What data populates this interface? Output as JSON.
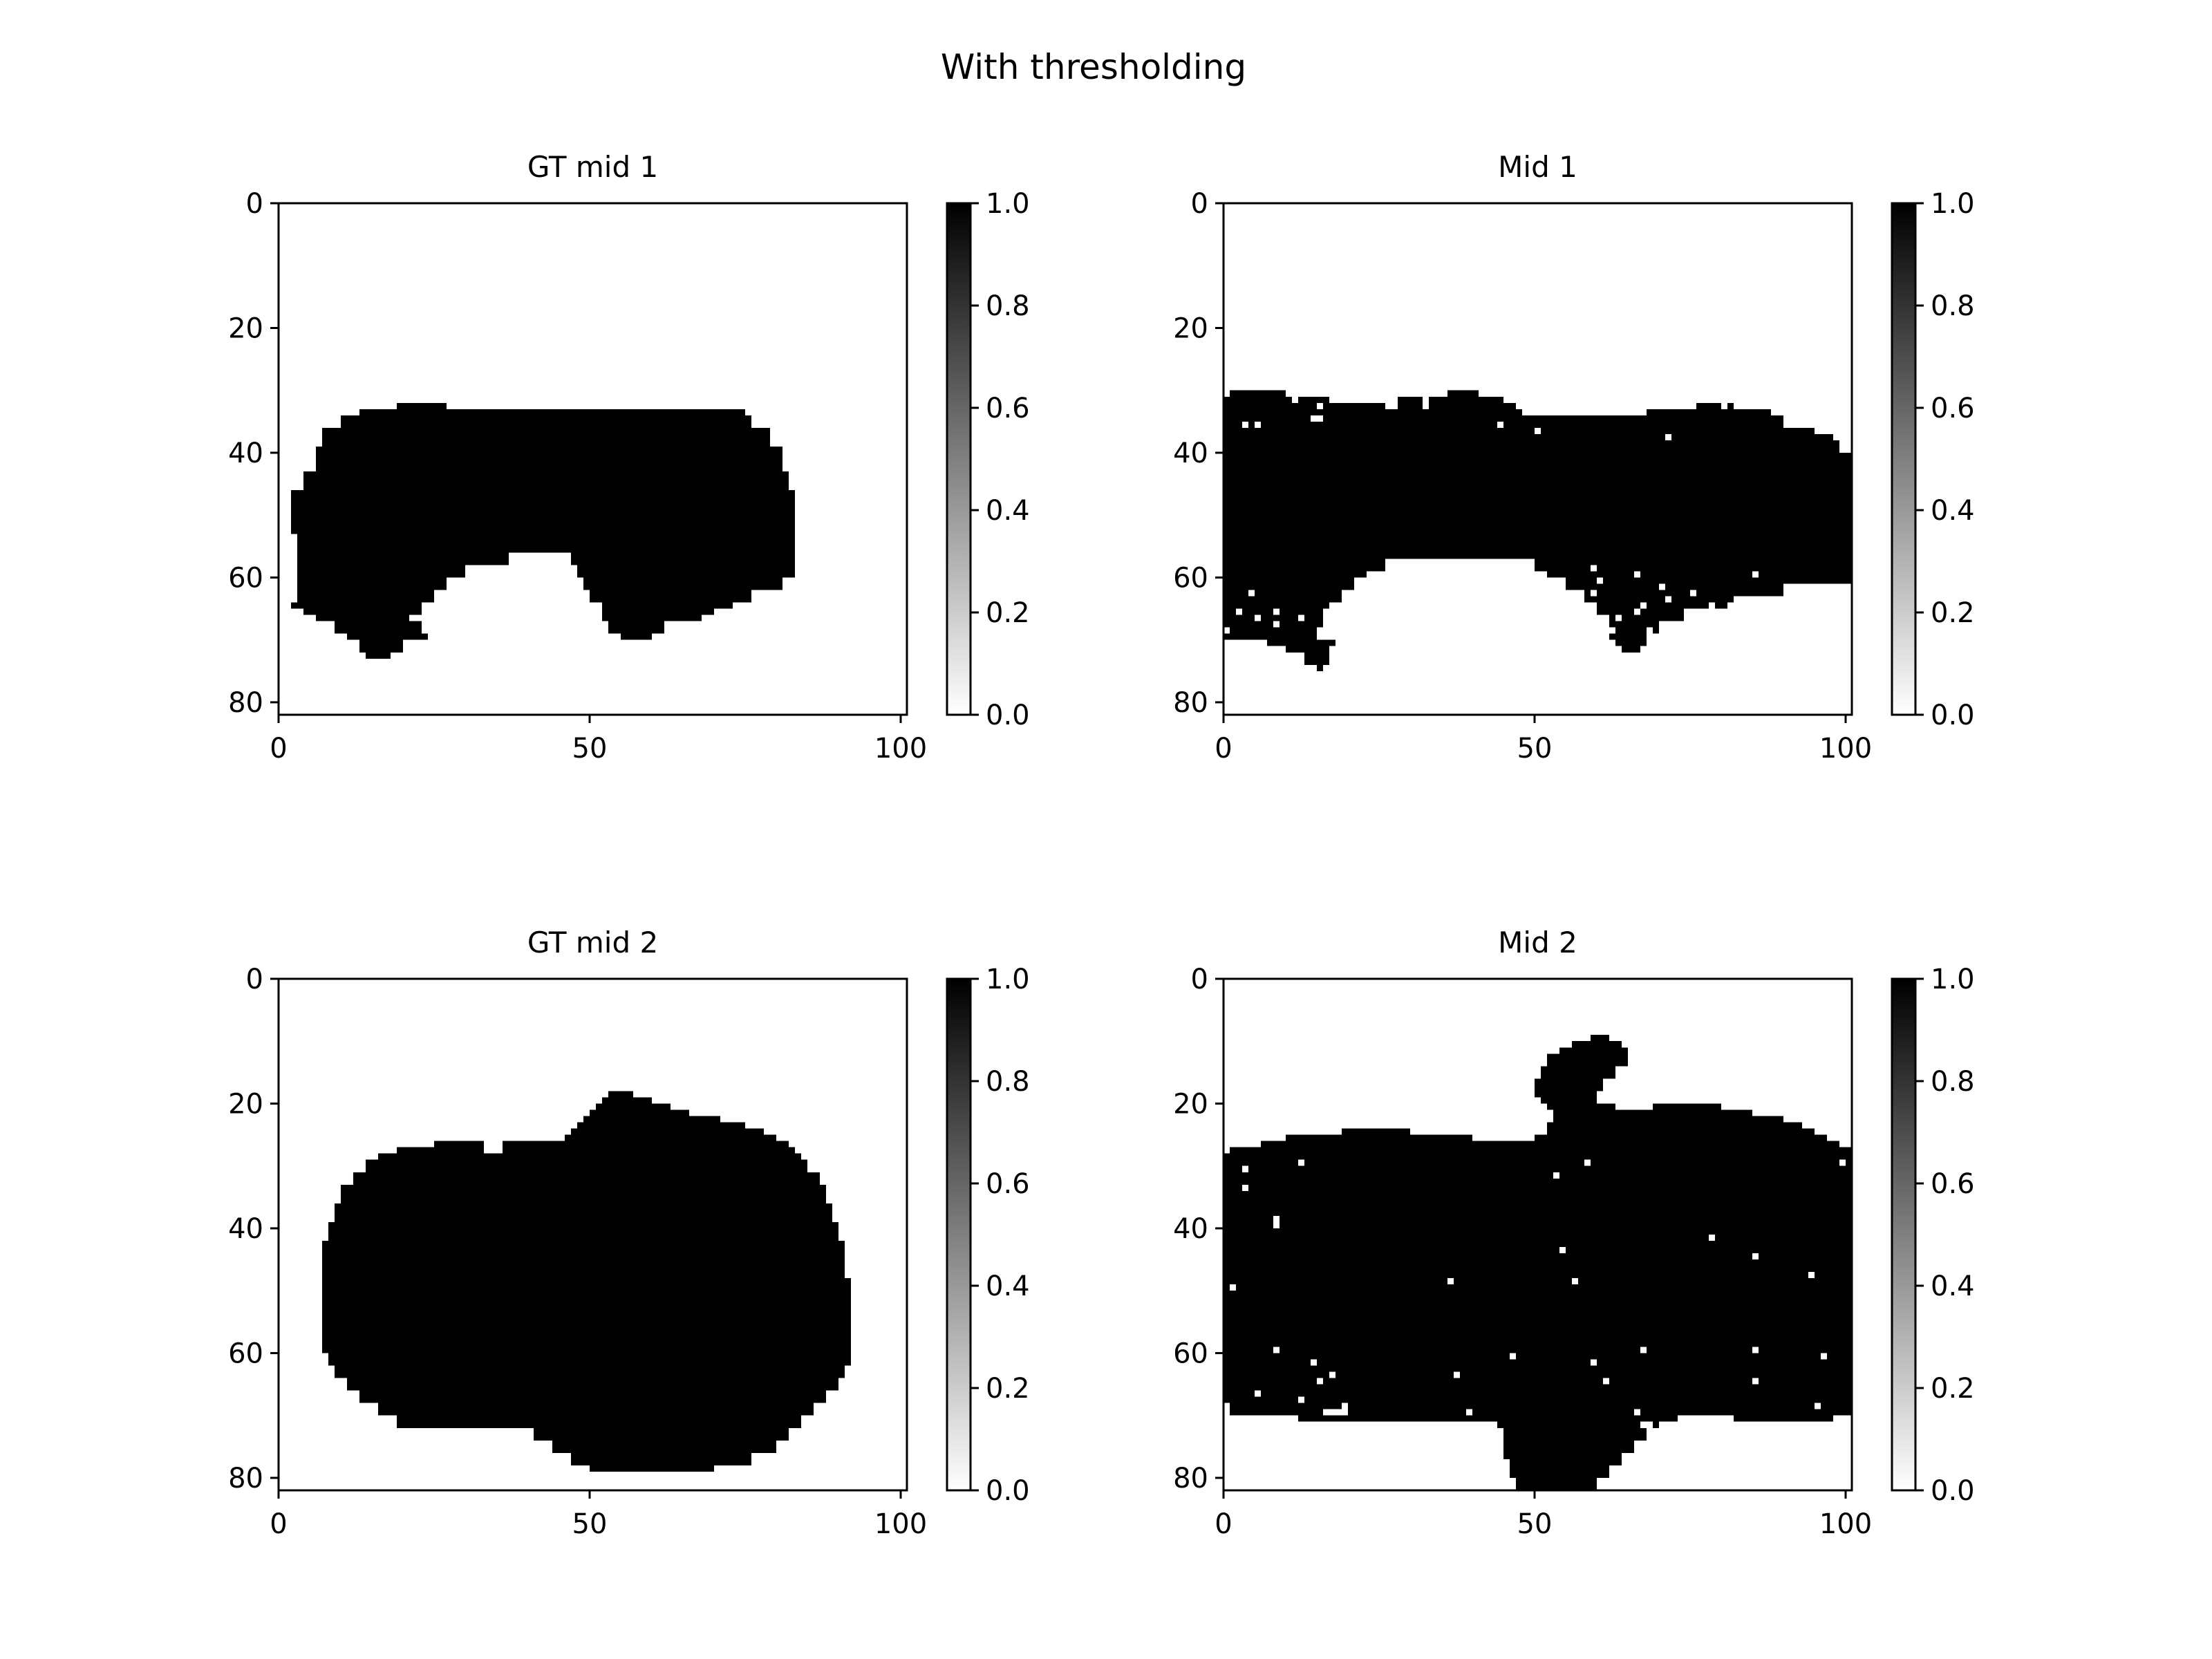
{
  "figure": {
    "title": "With thresholding"
  },
  "chart_data": [
    {
      "type": "heatmap",
      "title": "GT mid 1",
      "colormap": "gray_r",
      "xlim": [
        0,
        101
      ],
      "ylim": [
        82,
        0
      ],
      "x_ticks": [
        0,
        50,
        100
      ],
      "y_ticks": [
        0,
        20,
        40,
        60,
        80
      ],
      "colorbar": {
        "range": [
          0.0,
          1.0
        ],
        "ticks": [
          "0.0",
          "0.2",
          "0.4",
          "0.6",
          "0.8",
          "1.0"
        ]
      },
      "mask_rows": [
        [
          31,
          31,
          34,
          39
        ],
        [
          32,
          35,
          19,
          27
        ],
        [
          33,
          35,
          13,
          75
        ],
        [
          34,
          36,
          10,
          76
        ],
        [
          36,
          39,
          7,
          79
        ],
        [
          39,
          43,
          6,
          81
        ],
        [
          43,
          46,
          4,
          82
        ],
        [
          46,
          53,
          2,
          83
        ],
        [
          53,
          60,
          3,
          83
        ],
        [
          60,
          62,
          3,
          81
        ],
        [
          62,
          64,
          3,
          76
        ],
        [
          64,
          65,
          2,
          73
        ],
        [
          65,
          66,
          4,
          70
        ],
        [
          66,
          67,
          6,
          68
        ],
        [
          67,
          69,
          9,
          62
        ],
        [
          69,
          70,
          11,
          24
        ],
        [
          69,
          70,
          55,
          60
        ],
        [
          70,
          72,
          13,
          20
        ],
        [
          72,
          73,
          14,
          18
        ]
      ],
      "carve_rows": [
        [
          42,
          47,
          90,
          100
        ],
        [
          56,
          58,
          37,
          47
        ],
        [
          58,
          60,
          30,
          48
        ],
        [
          60,
          62,
          27,
          49
        ],
        [
          62,
          64,
          25,
          50
        ],
        [
          64,
          66,
          23,
          52
        ],
        [
          66,
          67,
          21,
          52
        ],
        [
          67,
          69,
          23,
          53
        ]
      ]
    },
    {
      "type": "heatmap",
      "title": "Mid 1",
      "colormap": "gray_r",
      "xlim": [
        0,
        101
      ],
      "ylim": [
        82,
        0
      ],
      "x_ticks": [
        0,
        50,
        100
      ],
      "y_ticks": [
        0,
        20,
        40,
        60,
        80
      ],
      "colorbar": {
        "range": [
          0.0,
          1.0
        ],
        "ticks": [
          "0.0",
          "0.2",
          "0.4",
          "0.6",
          "0.8",
          "1.0"
        ]
      },
      "mask_rows": [
        [
          30,
          31,
          0,
          10
        ],
        [
          30,
          31,
          36,
          41
        ],
        [
          31,
          32,
          0,
          17
        ],
        [
          31,
          32,
          28,
          45
        ],
        [
          32,
          33,
          0,
          26
        ],
        [
          32,
          33,
          28,
          47
        ],
        [
          32,
          33,
          76,
          82
        ],
        [
          33,
          34,
          0,
          48
        ],
        [
          33,
          34,
          68,
          88
        ],
        [
          34,
          36,
          0,
          90
        ],
        [
          36,
          37,
          0,
          95
        ],
        [
          37,
          38,
          0,
          98
        ],
        [
          38,
          59,
          0,
          101
        ],
        [
          59,
          61,
          0,
          101
        ],
        [
          61,
          63,
          0,
          90
        ],
        [
          63,
          65,
          0,
          82
        ],
        [
          65,
          67,
          0,
          74
        ],
        [
          67,
          69,
          0,
          70
        ],
        [
          69,
          70,
          0,
          68
        ],
        [
          70,
          71,
          7,
          18
        ],
        [
          70,
          71,
          63,
          68
        ],
        [
          71,
          72,
          10,
          17
        ],
        [
          71,
          72,
          64,
          67
        ],
        [
          72,
          74,
          13,
          17
        ],
        [
          74,
          75,
          15,
          16
        ]
      ],
      "carve_rows": [
        [
          57,
          59,
          26,
          50
        ],
        [
          59,
          60,
          23,
          52
        ],
        [
          60,
          62,
          21,
          55
        ],
        [
          62,
          64,
          19,
          58
        ],
        [
          64,
          66,
          17,
          60
        ],
        [
          66,
          68,
          16,
          62
        ],
        [
          68,
          70,
          15,
          62
        ],
        [
          64,
          65,
          67,
          68
        ],
        [
          66,
          67,
          63,
          64
        ],
        [
          63,
          64,
          71,
          72
        ],
        [
          35,
          36,
          3,
          4
        ],
        [
          32,
          33,
          74,
          75
        ],
        [
          38,
          40,
          99,
          101
        ]
      ],
      "speckle": [
        [
          11,
          6,
          23
        ],
        [
          30,
          64,
          71
        ],
        [
          20,
          62,
          70
        ],
        [
          24,
          58,
          70
        ],
        [
          17,
          10,
          35
        ],
        [
          15,
          30,
          38
        ],
        [
          12,
          94,
          101
        ]
      ]
    },
    {
      "type": "heatmap",
      "title": "GT mid 2",
      "colormap": "gray_r",
      "xlim": [
        0,
        101
      ],
      "ylim": [
        82,
        0
      ],
      "x_ticks": [
        0,
        50,
        100
      ],
      "y_ticks": [
        0,
        20,
        40,
        60,
        80
      ],
      "colorbar": {
        "range": [
          0.0,
          1.0
        ],
        "ticks": [
          "0.0",
          "0.2",
          "0.4",
          "0.6",
          "0.8",
          "1.0"
        ]
      },
      "mask_rows": [
        [
          18,
          19,
          53,
          57
        ],
        [
          19,
          20,
          52,
          60
        ],
        [
          20,
          21,
          51,
          63
        ],
        [
          21,
          22,
          50,
          66
        ],
        [
          22,
          23,
          49,
          71
        ],
        [
          23,
          24,
          48,
          75
        ],
        [
          24,
          25,
          47,
          78
        ],
        [
          25,
          26,
          46,
          80
        ],
        [
          26,
          27,
          25,
          82
        ],
        [
          27,
          28,
          19,
          83
        ],
        [
          28,
          29,
          16,
          84
        ],
        [
          29,
          31,
          14,
          85
        ],
        [
          31,
          33,
          12,
          87
        ],
        [
          33,
          36,
          10,
          88
        ],
        [
          36,
          39,
          9,
          89
        ],
        [
          39,
          42,
          8,
          90
        ],
        [
          42,
          48,
          7,
          91
        ],
        [
          48,
          60,
          7,
          92
        ],
        [
          60,
          62,
          8,
          92
        ],
        [
          62,
          64,
          9,
          91
        ],
        [
          64,
          66,
          11,
          90
        ],
        [
          66,
          68,
          13,
          88
        ],
        [
          68,
          70,
          16,
          86
        ],
        [
          70,
          72,
          19,
          84
        ],
        [
          72,
          74,
          41,
          82
        ],
        [
          74,
          76,
          44,
          80
        ],
        [
          76,
          78,
          47,
          76
        ],
        [
          78,
          79,
          50,
          70
        ]
      ],
      "carve_rows": [
        [
          26,
          28,
          33,
          36
        ]
      ]
    },
    {
      "type": "heatmap",
      "title": "Mid 2",
      "colormap": "gray_r",
      "xlim": [
        0,
        101
      ],
      "ylim": [
        82,
        0
      ],
      "x_ticks": [
        0,
        50,
        100
      ],
      "y_ticks": [
        0,
        20,
        40,
        60,
        80
      ],
      "colorbar": {
        "range": [
          0.0,
          1.0
        ],
        "ticks": [
          "0.0",
          "0.2",
          "0.4",
          "0.6",
          "0.8",
          "1.0"
        ]
      },
      "mask_rows": [
        [
          9,
          10,
          59,
          62
        ],
        [
          10,
          11,
          56,
          64
        ],
        [
          11,
          12,
          54,
          65
        ],
        [
          12,
          14,
          52,
          65
        ],
        [
          14,
          16,
          51,
          63
        ],
        [
          16,
          18,
          50,
          61
        ],
        [
          18,
          19,
          50,
          60
        ],
        [
          19,
          20,
          51,
          60
        ],
        [
          20,
          21,
          52,
          63
        ],
        [
          20,
          21,
          69,
          80
        ],
        [
          21,
          22,
          53,
          85
        ],
        [
          22,
          23,
          53,
          90
        ],
        [
          23,
          24,
          52,
          93
        ],
        [
          24,
          25,
          19,
          30
        ],
        [
          24,
          25,
          52,
          95
        ],
        [
          25,
          26,
          10,
          40
        ],
        [
          25,
          26,
          50,
          97
        ],
        [
          26,
          27,
          6,
          99
        ],
        [
          27,
          28,
          1,
          101
        ],
        [
          28,
          68,
          0,
          101
        ],
        [
          68,
          70,
          0,
          101
        ],
        [
          70,
          71,
          12,
          73
        ],
        [
          70,
          71,
          82,
          98
        ],
        [
          71,
          72,
          44,
          70
        ],
        [
          72,
          74,
          45,
          68
        ],
        [
          74,
          76,
          45,
          66
        ],
        [
          76,
          78,
          45,
          64
        ],
        [
          78,
          80,
          46,
          62
        ],
        [
          80,
          82,
          47,
          60
        ]
      ],
      "carve_rows": [
        [
          68,
          70,
          0,
          1
        ],
        [
          69,
          70,
          16,
          20
        ],
        [
          18,
          21,
          63,
          68
        ]
      ],
      "speckle": [
        [
          23,
          5,
          52
        ],
        [
          18,
          68,
          82
        ],
        [
          14,
          78,
          95
        ],
        [
          16,
          58,
          70
        ]
      ]
    }
  ]
}
